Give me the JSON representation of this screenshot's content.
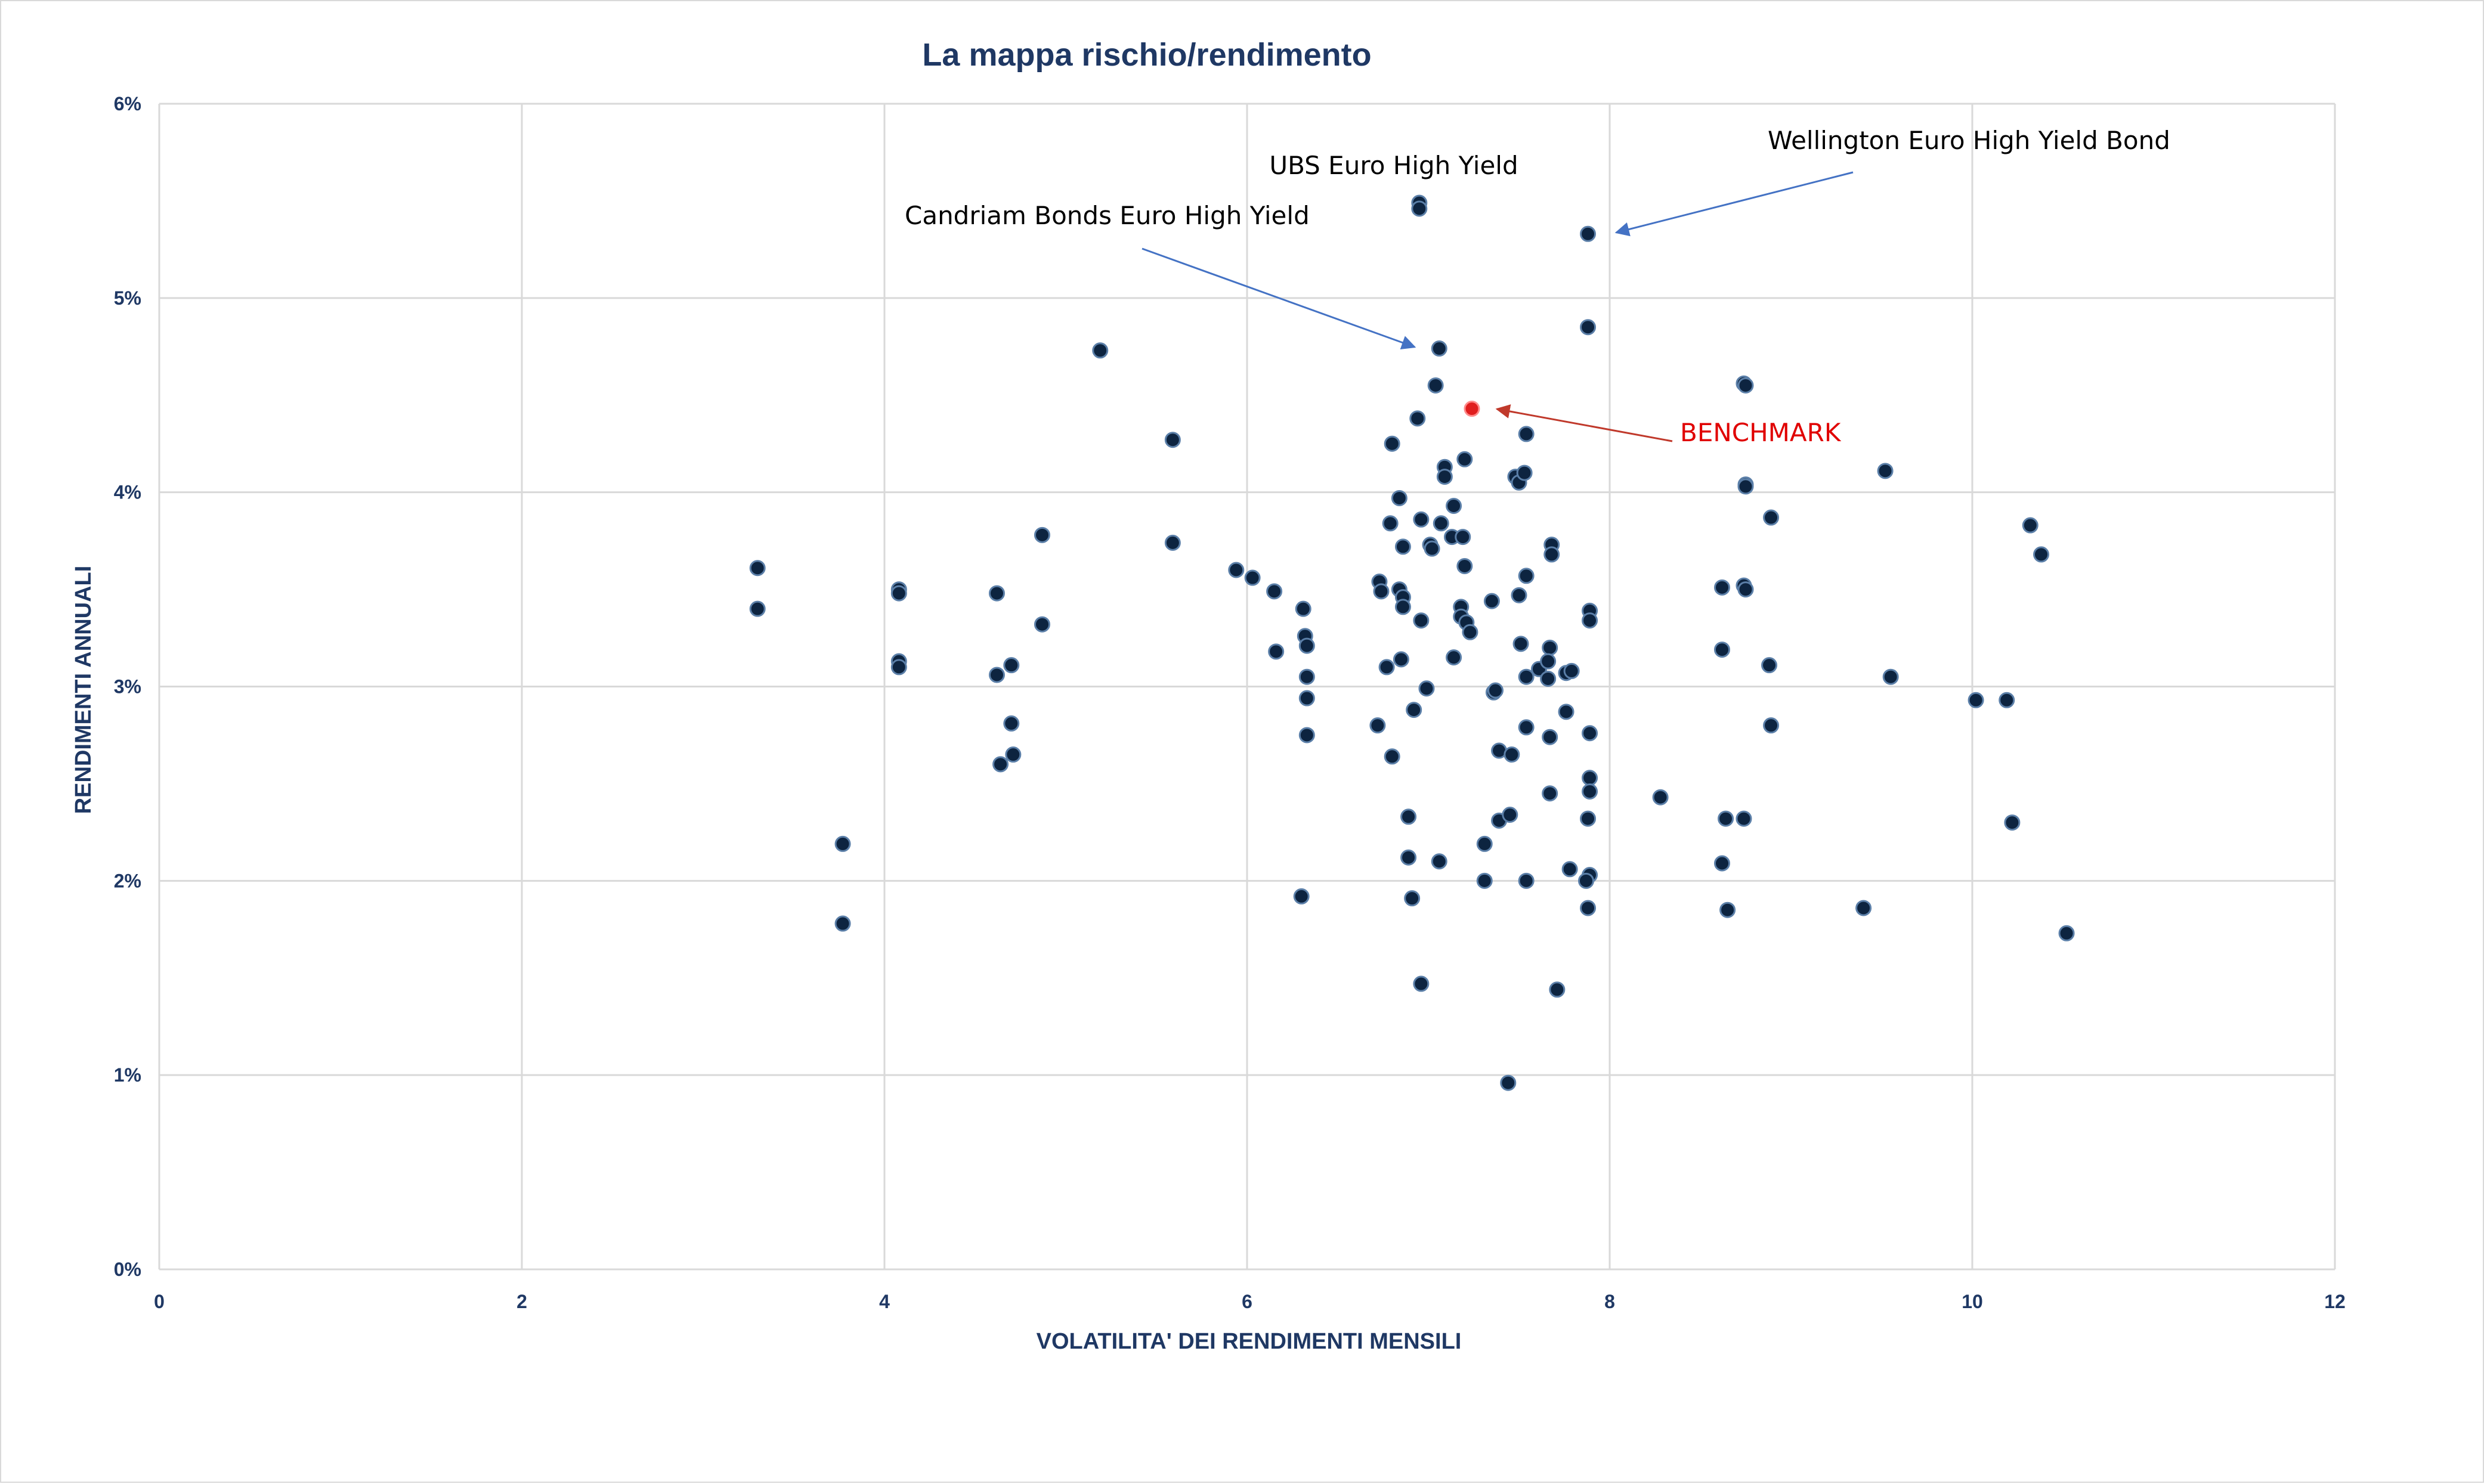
{
  "chart_data": {
    "type": "scatter",
    "title": "La mappa rischio/rendimento",
    "xlabel": "VOLATILITA' DEI RENDIMENTI MENSILI",
    "ylabel": "RENDIMENTI ANNUALI",
    "xlim": [
      0,
      12
    ],
    "ylim": [
      0,
      6
    ],
    "x_ticks": [
      "0",
      "2",
      "4",
      "6",
      "8",
      "10",
      "12"
    ],
    "y_ticks": [
      "0%",
      "1%",
      "2%",
      "3%",
      "4%",
      "5%",
      "6%"
    ],
    "grid": true,
    "colors": {
      "points": "#0d2440",
      "point_edge": "#5b7fa8",
      "benchmark": "#e01e1e",
      "arrow": "#4472c4",
      "benchmark_arrow": "#c0392b",
      "grid": "#d9d9d9",
      "axis_text": "#1f3864"
    },
    "series": [
      {
        "points": [
          [
            3.3,
            3.61
          ],
          [
            3.3,
            3.4
          ],
          [
            3.77,
            2.19
          ],
          [
            3.77,
            1.78
          ],
          [
            4.08,
            3.5
          ],
          [
            4.08,
            3.48
          ],
          [
            4.08,
            3.13
          ],
          [
            4.08,
            3.1
          ],
          [
            4.62,
            3.48
          ],
          [
            4.62,
            3.06
          ],
          [
            4.64,
            2.6
          ],
          [
            4.7,
            3.11
          ],
          [
            4.7,
            2.81
          ],
          [
            4.71,
            2.65
          ],
          [
            4.87,
            3.78
          ],
          [
            4.87,
            3.32
          ],
          [
            5.19,
            4.73
          ],
          [
            5.59,
            4.27
          ],
          [
            5.59,
            3.74
          ],
          [
            5.94,
            3.6
          ],
          [
            6.03,
            3.56
          ],
          [
            6.15,
            3.49
          ],
          [
            6.16,
            3.18
          ],
          [
            6.31,
            3.4
          ],
          [
            6.32,
            3.26
          ],
          [
            6.33,
            3.21
          ],
          [
            6.33,
            3.05
          ],
          [
            6.33,
            2.94
          ],
          [
            6.33,
            2.75
          ],
          [
            6.3,
            1.92
          ],
          [
            6.73,
            3.54
          ],
          [
            6.74,
            3.49
          ],
          [
            6.72,
            2.8
          ],
          [
            6.77,
            3.1
          ],
          [
            6.8,
            4.25
          ],
          [
            6.79,
            3.84
          ],
          [
            6.8,
            2.64
          ],
          [
            6.84,
            3.97
          ],
          [
            6.84,
            3.5
          ],
          [
            6.85,
            3.14
          ],
          [
            6.86,
            3.72
          ],
          [
            6.86,
            3.46
          ],
          [
            6.86,
            3.41
          ],
          [
            6.89,
            2.33
          ],
          [
            6.89,
            2.12
          ],
          [
            6.91,
            1.91
          ],
          [
            6.92,
            2.88
          ],
          [
            6.95,
            5.49
          ],
          [
            6.95,
            5.46
          ],
          [
            6.94,
            4.38
          ],
          [
            6.96,
            3.86
          ],
          [
            6.96,
            3.34
          ],
          [
            6.96,
            1.47
          ],
          [
            6.99,
            2.99
          ],
          [
            7.01,
            3.73
          ],
          [
            7.02,
            3.71
          ],
          [
            7.04,
            4.55
          ],
          [
            7.06,
            4.74
          ],
          [
            7.06,
            2.1
          ],
          [
            7.07,
            3.84
          ],
          [
            7.09,
            4.13
          ],
          [
            7.09,
            4.08
          ],
          [
            7.13,
            3.77
          ],
          [
            7.14,
            3.93
          ],
          [
            7.14,
            3.15
          ],
          [
            7.18,
            3.41
          ],
          [
            7.18,
            3.36
          ],
          [
            7.2,
            4.17
          ],
          [
            7.19,
            3.77
          ],
          [
            7.2,
            3.62
          ],
          [
            7.21,
            3.33
          ],
          [
            7.23,
            3.28
          ],
          [
            7.31,
            2.19
          ],
          [
            7.31,
            2.0
          ],
          [
            7.35,
            3.44
          ],
          [
            7.36,
            2.97
          ],
          [
            7.37,
            2.98
          ],
          [
            7.39,
            2.67
          ],
          [
            7.39,
            2.31
          ],
          [
            7.45,
            2.34
          ],
          [
            7.44,
            0.96
          ],
          [
            7.46,
            2.65
          ],
          [
            7.48,
            4.08
          ],
          [
            7.5,
            4.05
          ],
          [
            7.5,
            3.47
          ],
          [
            7.51,
            3.22
          ],
          [
            7.53,
            4.1
          ],
          [
            7.54,
            4.3
          ],
          [
            7.54,
            3.57
          ],
          [
            7.54,
            3.05
          ],
          [
            7.54,
            2.79
          ],
          [
            7.54,
            2.0
          ],
          [
            7.61,
            3.09
          ],
          [
            7.67,
            3.2
          ],
          [
            7.66,
            3.13
          ],
          [
            7.66,
            3.04
          ],
          [
            7.67,
            2.74
          ],
          [
            7.68,
            3.73
          ],
          [
            7.68,
            3.68
          ],
          [
            7.67,
            2.45
          ],
          [
            7.71,
            1.44
          ],
          [
            7.76,
            2.87
          ],
          [
            7.76,
            3.07
          ],
          [
            7.79,
            3.08
          ],
          [
            7.78,
            2.06
          ],
          [
            7.88,
            5.33
          ],
          [
            7.88,
            4.85
          ],
          [
            7.89,
            3.39
          ],
          [
            7.89,
            3.34
          ],
          [
            7.89,
            2.76
          ],
          [
            7.89,
            2.53
          ],
          [
            7.89,
            2.46
          ],
          [
            7.88,
            2.32
          ],
          [
            7.89,
            2.03
          ],
          [
            7.87,
            2.0
          ],
          [
            7.88,
            1.86
          ],
          [
            8.28,
            2.43
          ],
          [
            8.62,
            3.51
          ],
          [
            8.62,
            3.19
          ],
          [
            8.62,
            2.09
          ],
          [
            8.64,
            2.32
          ],
          [
            8.65,
            1.85
          ],
          [
            8.74,
            4.56
          ],
          [
            8.75,
            4.55
          ],
          [
            8.75,
            4.04
          ],
          [
            8.75,
            4.03
          ],
          [
            8.74,
            3.52
          ],
          [
            8.75,
            3.5
          ],
          [
            8.74,
            2.32
          ],
          [
            8.89,
            3.87
          ],
          [
            8.88,
            3.11
          ],
          [
            8.89,
            2.8
          ],
          [
            9.4,
            1.86
          ],
          [
            9.52,
            4.11
          ],
          [
            9.55,
            3.05
          ],
          [
            10.02,
            2.93
          ],
          [
            10.19,
            2.93
          ],
          [
            10.22,
            2.3
          ],
          [
            10.32,
            3.83
          ],
          [
            10.38,
            3.68
          ],
          [
            10.52,
            1.73
          ]
        ]
      }
    ],
    "benchmark_point": [
      7.24,
      4.43
    ],
    "annotations": {
      "ubs": "UBS Euro High Yield",
      "wellington": "Wellington Euro High Yield Bond",
      "candriam": "Candriam Bonds Euro High Yield",
      "benchmark": "BENCHMARK"
    }
  }
}
